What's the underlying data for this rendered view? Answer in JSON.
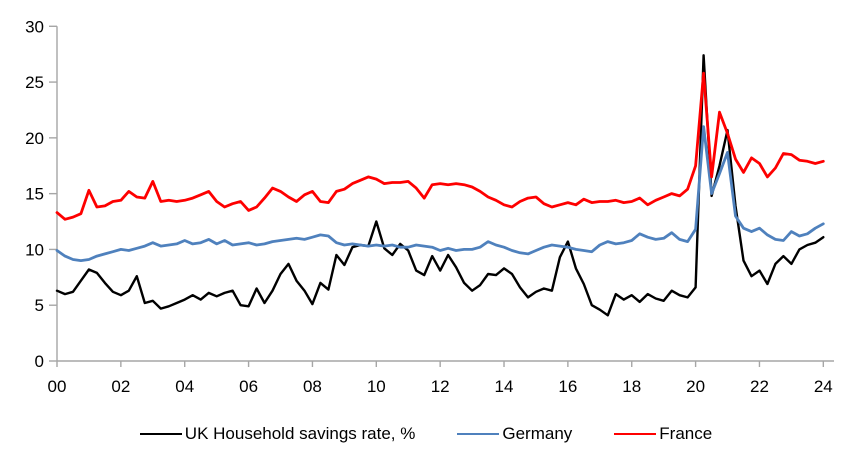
{
  "chart_data": {
    "type": "line",
    "title": "",
    "xlabel": "",
    "ylabel": "",
    "grid": false,
    "legend_position": "bottom",
    "x_axis": {
      "frequency": "quarterly",
      "start_year": 2000,
      "end_year": 2024,
      "tick_labels": [
        "00",
        "02",
        "04",
        "06",
        "08",
        "10",
        "12",
        "14",
        "16",
        "18",
        "20",
        "22",
        "24"
      ],
      "tick_years": [
        0,
        2,
        4,
        6,
        8,
        10,
        12,
        14,
        16,
        18,
        20,
        22,
        24
      ]
    },
    "y_axis": {
      "min": 0,
      "max": 30,
      "ticks": [
        0,
        5,
        10,
        15,
        20,
        25,
        30
      ],
      "tick_labels": [
        "0",
        "5",
        "10",
        "15",
        "20",
        "25",
        "30"
      ]
    },
    "axis_color": "#a6a6a6",
    "series": [
      {
        "name": "UK Household savings rate, %",
        "color": "#000000",
        "width": 2.4,
        "values": [
          6.3,
          6.0,
          6.2,
          7.2,
          8.2,
          7.9,
          7.0,
          6.2,
          5.9,
          6.3,
          7.6,
          5.2,
          5.4,
          4.7,
          4.9,
          5.2,
          5.5,
          5.9,
          5.5,
          6.1,
          5.8,
          6.1,
          6.3,
          5.0,
          4.9,
          6.5,
          5.2,
          6.3,
          7.8,
          8.7,
          7.2,
          6.3,
          5.1,
          7.0,
          6.4,
          9.5,
          8.6,
          10.2,
          10.4,
          10.3,
          12.5,
          10.1,
          9.5,
          10.5,
          9.9,
          8.1,
          7.7,
          9.4,
          8.1,
          9.5,
          8.4,
          7.0,
          6.3,
          6.8,
          7.8,
          7.7,
          8.3,
          7.8,
          6.6,
          5.7,
          6.2,
          6.5,
          6.3,
          9.3,
          10.7,
          8.3,
          6.9,
          5.0,
          4.6,
          4.1,
          6.0,
          5.5,
          5.9,
          5.3,
          6.0,
          5.6,
          5.4,
          6.3,
          5.9,
          5.7,
          6.6,
          27.4,
          14.8,
          17.5,
          20.7,
          13.9,
          9.0,
          7.6,
          8.1,
          6.9,
          8.7,
          9.4,
          8.7,
          10.0,
          10.4,
          10.6,
          11.1
        ]
      },
      {
        "name": "Germany",
        "color": "#4f81bd",
        "width": 2.8,
        "values": [
          9.9,
          9.4,
          9.1,
          9.0,
          9.1,
          9.4,
          9.6,
          9.8,
          10.0,
          9.9,
          10.1,
          10.3,
          10.6,
          10.3,
          10.4,
          10.5,
          10.8,
          10.5,
          10.6,
          10.9,
          10.5,
          10.8,
          10.4,
          10.5,
          10.6,
          10.4,
          10.5,
          10.7,
          10.8,
          10.9,
          11.0,
          10.9,
          11.1,
          11.3,
          11.2,
          10.6,
          10.4,
          10.5,
          10.4,
          10.3,
          10.4,
          10.3,
          10.4,
          10.2,
          10.2,
          10.4,
          10.3,
          10.2,
          9.9,
          10.1,
          9.9,
          10.0,
          10.0,
          10.2,
          10.7,
          10.4,
          10.2,
          9.9,
          9.7,
          9.6,
          9.9,
          10.2,
          10.4,
          10.3,
          10.2,
          10.0,
          9.9,
          9.8,
          10.4,
          10.7,
          10.5,
          10.6,
          10.8,
          11.4,
          11.1,
          10.9,
          11.0,
          11.5,
          10.9,
          10.7,
          11.8,
          21.0,
          15.0,
          16.8,
          18.7,
          13.0,
          11.9,
          11.6,
          11.9,
          11.3,
          10.9,
          10.8,
          11.6,
          11.2,
          11.4,
          11.9,
          12.3
        ]
      },
      {
        "name": "France",
        "color": "#fe0000",
        "width": 2.8,
        "values": [
          13.3,
          12.7,
          12.9,
          13.2,
          15.3,
          13.8,
          13.9,
          14.3,
          14.4,
          15.2,
          14.7,
          14.6,
          16.1,
          14.3,
          14.4,
          14.3,
          14.4,
          14.6,
          14.9,
          15.2,
          14.3,
          13.8,
          14.1,
          14.3,
          13.5,
          13.8,
          14.6,
          15.5,
          15.2,
          14.7,
          14.3,
          14.9,
          15.2,
          14.3,
          14.2,
          15.2,
          15.4,
          15.9,
          16.2,
          16.5,
          16.3,
          15.9,
          16.0,
          16.0,
          16.1,
          15.5,
          14.6,
          15.8,
          15.9,
          15.8,
          15.9,
          15.8,
          15.6,
          15.2,
          14.7,
          14.4,
          14.0,
          13.8,
          14.3,
          14.6,
          14.7,
          14.1,
          13.8,
          14.0,
          14.2,
          14.0,
          14.5,
          14.2,
          14.3,
          14.3,
          14.4,
          14.2,
          14.3,
          14.6,
          14.0,
          14.4,
          14.7,
          15.0,
          14.8,
          15.4,
          17.5,
          25.8,
          16.5,
          22.3,
          20.4,
          18.1,
          16.9,
          18.2,
          17.7,
          16.5,
          17.3,
          18.6,
          18.5,
          18.0,
          17.9,
          17.7,
          17.9
        ]
      }
    ]
  },
  "legend": {
    "items": [
      {
        "label": "UK Household savings rate, %"
      },
      {
        "label": "Germany"
      },
      {
        "label": "France"
      }
    ]
  }
}
